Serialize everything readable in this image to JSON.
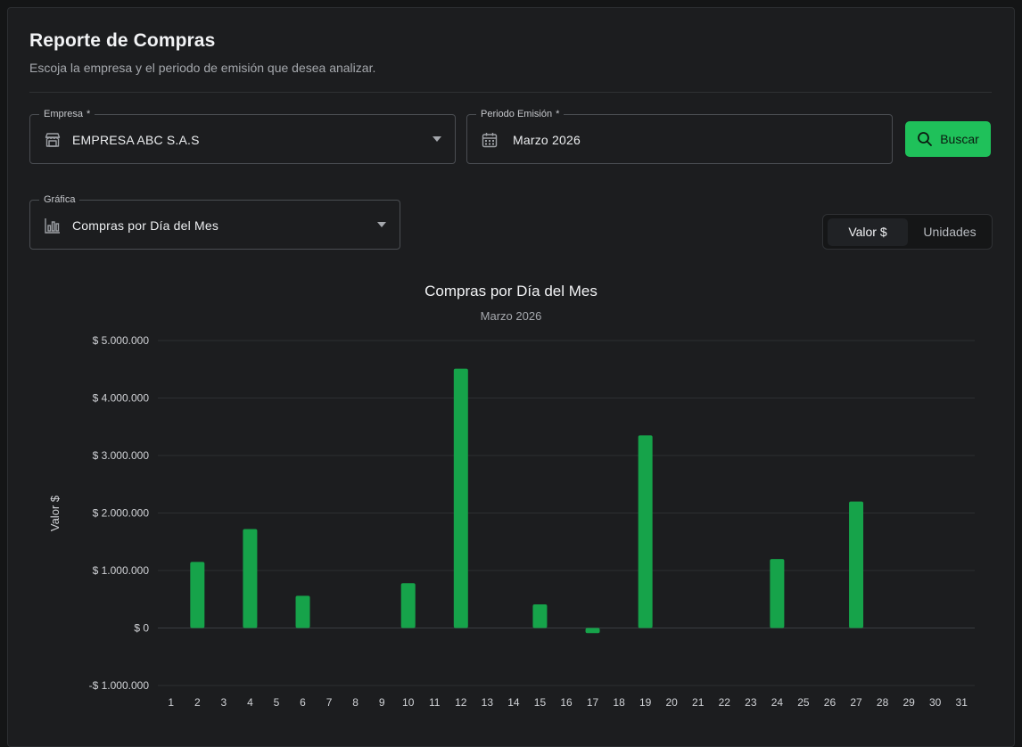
{
  "header": {
    "title": "Reporte de Compras",
    "subtitle": "Escoja la empresa y el periodo de emisión que desea analizar."
  },
  "filters": {
    "company": {
      "label": "Empresa",
      "required_mark": "*",
      "value": "EMPRESA ABC S.A.S",
      "icon": "store-icon"
    },
    "period": {
      "label": "Periodo Emisión",
      "required_mark": "*",
      "value": "Marzo 2026",
      "icon": "calendar-icon"
    },
    "search_button": {
      "label": "Buscar",
      "icon": "search-icon",
      "color": "#1fc15a"
    },
    "chart_select": {
      "label": "Gráfica",
      "value": "Compras por Día del Mes",
      "icon": "bar-chart-icon"
    }
  },
  "toggle": {
    "options": [
      "Valor $",
      "Unidades"
    ],
    "selected": "Valor $"
  },
  "chart_data": {
    "type": "bar",
    "title": "Compras por Día del Mes",
    "subtitle": "Marzo 2026",
    "ylabel": "Valor $",
    "xlabel": "",
    "ylim": [
      -1000000,
      5000000
    ],
    "yticks": [
      -1000000,
      0,
      1000000,
      2000000,
      3000000,
      4000000,
      5000000
    ],
    "ytick_labels": [
      "-$ 1.000.000",
      "$ 0",
      "$ 1.000.000",
      "$ 2.000.000",
      "$ 3.000.000",
      "$ 4.000.000",
      "$ 5.000.000"
    ],
    "grid": true,
    "bar_color": "#16a34a",
    "categories": [
      "1",
      "2",
      "3",
      "4",
      "5",
      "6",
      "7",
      "8",
      "9",
      "10",
      "11",
      "12",
      "13",
      "14",
      "15",
      "16",
      "17",
      "18",
      "19",
      "20",
      "21",
      "22",
      "23",
      "24",
      "25",
      "26",
      "27",
      "28",
      "29",
      "30",
      "31"
    ],
    "values": [
      0,
      1150000,
      0,
      1720000,
      0,
      560000,
      0,
      0,
      0,
      780000,
      0,
      4510000,
      0,
      0,
      410000,
      0,
      -90000,
      0,
      3350000,
      0,
      0,
      0,
      0,
      1200000,
      0,
      0,
      2200000,
      0,
      0,
      0,
      0
    ]
  }
}
